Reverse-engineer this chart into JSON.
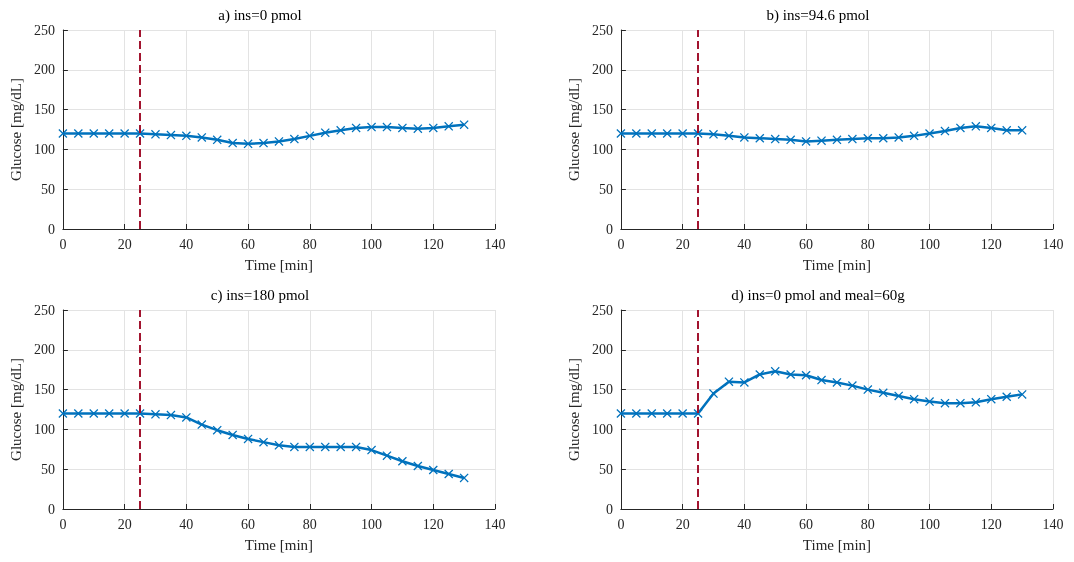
{
  "chart_data": [
    {
      "type": "line",
      "title": "a) ins=0 pmol",
      "xlabel": "Time [min]",
      "ylabel": "Glucose [mg/dL]",
      "x": [
        0,
        5,
        10,
        15,
        20,
        25,
        30,
        35,
        40,
        45,
        50,
        55,
        60,
        65,
        70,
        75,
        80,
        85,
        90,
        95,
        100,
        105,
        110,
        115,
        120,
        125,
        130
      ],
      "series": [
        {
          "color": "#0072bd",
          "values": [
            120,
            120,
            120,
            120,
            120,
            120,
            119,
            118,
            117,
            115,
            112,
            108,
            107,
            108,
            110,
            113,
            117,
            121,
            124,
            127,
            128,
            128,
            127,
            126,
            127,
            129,
            131
          ]
        }
      ],
      "xlim": [
        0,
        140
      ],
      "xticks": [
        0,
        20,
        40,
        60,
        80,
        100,
        120,
        140
      ],
      "ylim": [
        0,
        250
      ],
      "yticks": [
        0,
        50,
        100,
        150,
        200,
        250
      ],
      "grid": true,
      "marker": "cross",
      "line_style": "solid",
      "ref_lines": [
        {
          "axis": "x",
          "value": 25,
          "color": "#a2142f",
          "line_style": "dashed"
        }
      ]
    },
    {
      "type": "line",
      "title": "b) ins=94.6 pmol",
      "xlabel": "Time [min]",
      "ylabel": "Glucose [mg/dL]",
      "x": [
        0,
        5,
        10,
        15,
        20,
        25,
        30,
        35,
        40,
        45,
        50,
        55,
        60,
        65,
        70,
        75,
        80,
        85,
        90,
        95,
        100,
        105,
        110,
        115,
        120,
        125,
        130
      ],
      "series": [
        {
          "color": "#0072bd",
          "values": [
            120,
            120,
            120,
            120,
            120,
            120,
            119,
            117,
            115,
            114,
            113,
            112,
            110,
            111,
            112,
            113,
            114,
            114,
            115,
            117,
            120,
            123,
            127,
            129,
            127,
            124,
            124
          ]
        }
      ],
      "xlim": [
        0,
        140
      ],
      "xticks": [
        0,
        20,
        40,
        60,
        80,
        100,
        120,
        140
      ],
      "ylim": [
        0,
        250
      ],
      "yticks": [
        0,
        50,
        100,
        150,
        200,
        250
      ],
      "grid": true,
      "marker": "cross",
      "line_style": "solid",
      "ref_lines": [
        {
          "axis": "x",
          "value": 25,
          "color": "#a2142f",
          "line_style": "dashed"
        }
      ]
    },
    {
      "type": "line",
      "title": "c) ins=180 pmol",
      "xlabel": "Time [min]",
      "ylabel": "Glucose [mg/dL]",
      "x": [
        0,
        5,
        10,
        15,
        20,
        25,
        30,
        35,
        40,
        45,
        50,
        55,
        60,
        65,
        70,
        75,
        80,
        85,
        90,
        95,
        100,
        105,
        110,
        115,
        120,
        125,
        130
      ],
      "series": [
        {
          "color": "#0072bd",
          "values": [
            120,
            120,
            120,
            120,
            120,
            120,
            119,
            118,
            115,
            106,
            99,
            93,
            88,
            84,
            80,
            78,
            78,
            78,
            78,
            78,
            74,
            67,
            60,
            54,
            49,
            44,
            39
          ]
        }
      ],
      "xlim": [
        0,
        140
      ],
      "xticks": [
        0,
        20,
        40,
        60,
        80,
        100,
        120,
        140
      ],
      "ylim": [
        0,
        250
      ],
      "yticks": [
        0,
        50,
        100,
        150,
        200,
        250
      ],
      "grid": true,
      "marker": "cross",
      "line_style": "solid",
      "ref_lines": [
        {
          "axis": "x",
          "value": 25,
          "color": "#a2142f",
          "line_style": "dashed"
        }
      ]
    },
    {
      "type": "line",
      "title": "d) ins=0 pmol and meal=60g",
      "xlabel": "Time [min]",
      "ylabel": "Glucose [mg/dL]",
      "x": [
        0,
        5,
        10,
        15,
        20,
        25,
        30,
        35,
        40,
        45,
        50,
        55,
        60,
        65,
        70,
        75,
        80,
        85,
        90,
        95,
        100,
        105,
        110,
        115,
        120,
        125,
        130
      ],
      "series": [
        {
          "color": "#0072bd",
          "values": [
            120,
            120,
            120,
            120,
            120,
            120,
            145,
            160,
            159,
            169,
            173,
            169,
            168,
            162,
            159,
            155,
            150,
            146,
            142,
            138,
            135,
            133,
            133,
            134,
            138,
            141,
            144
          ]
        }
      ],
      "xlim": [
        0,
        140
      ],
      "xticks": [
        0,
        20,
        40,
        60,
        80,
        100,
        120,
        140
      ],
      "ylim": [
        0,
        250
      ],
      "yticks": [
        0,
        50,
        100,
        150,
        200,
        250
      ],
      "grid": true,
      "marker": "cross",
      "line_style": "solid",
      "ref_lines": [
        {
          "axis": "x",
          "value": 25,
          "color": "#a2142f",
          "line_style": "dashed"
        }
      ]
    }
  ]
}
